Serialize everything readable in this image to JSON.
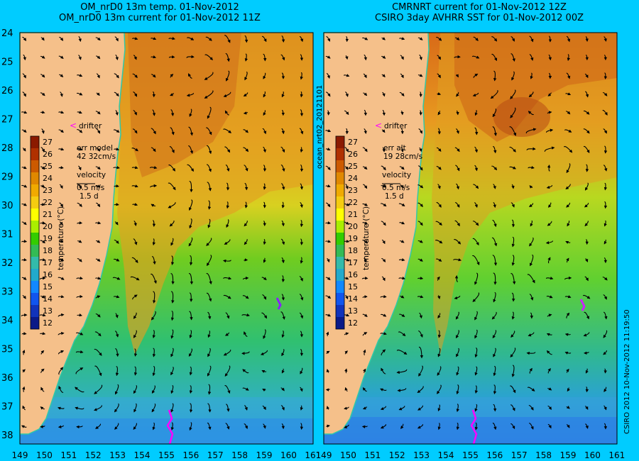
{
  "left_panel": {
    "title_line1": "OM_nrD0 13m temp. 01-Nov-2012",
    "title_line2": "OM_nrD0 13m current for 01-Nov-2012 11Z",
    "drifter_label": "drifter",
    "err_label": "err model",
    "err_value": "42 32cm/s",
    "velocity_label": "velocity",
    "velocity_scale": "0.5 m/s",
    "velocity_time": "1.5 d",
    "side_text": "ocean_nrt02_20121101"
  },
  "right_panel": {
    "title_line1": "CMRNRT current for 01-Nov-2012 12Z",
    "title_line2": "CSIRO 3day AVHRR SST for 01-Nov-2012 00Z",
    "drifter_label": "drifter",
    "err_label": "err alt",
    "err_value": "19 28cm/s",
    "velocity_label": "velocity",
    "velocity_scale": "0.5 m/s",
    "velocity_time": "1.5 d",
    "side_text": "CSIRO 2012  10-Nov-2012 11:19:50"
  },
  "colorbar": {
    "title": "temperature (°C)",
    "ticks": [
      "27",
      "26",
      "25",
      "24",
      "23",
      "22",
      "21",
      "20",
      "19",
      "18",
      "17",
      "16",
      "15",
      "14",
      "13",
      "12"
    ],
    "colors": [
      "#8b1a00",
      "#b03000",
      "#cc5a00",
      "#e08800",
      "#f0aa00",
      "#f5cc10",
      "#ffff00",
      "#aaee00",
      "#33cc00",
      "#33bb55",
      "#33bbaa",
      "#22aacc",
      "#1188ff",
      "#1155ee",
      "#1133bb",
      "#0a1a88"
    ]
  },
  "axes": {
    "lat_labels": [
      "24",
      "25",
      "26",
      "27",
      "28",
      "29",
      "30",
      "31",
      "32",
      "33",
      "34",
      "35",
      "36",
      "37",
      "38"
    ],
    "lon_labels": [
      "149",
      "150",
      "151",
      "152",
      "153",
      "154",
      "155",
      "156",
      "157",
      "158",
      "159",
      "160",
      "161"
    ]
  },
  "colors": {
    "background": "#00ccff",
    "land": "#f5c08a",
    "drifter": "#ff00ff"
  }
}
